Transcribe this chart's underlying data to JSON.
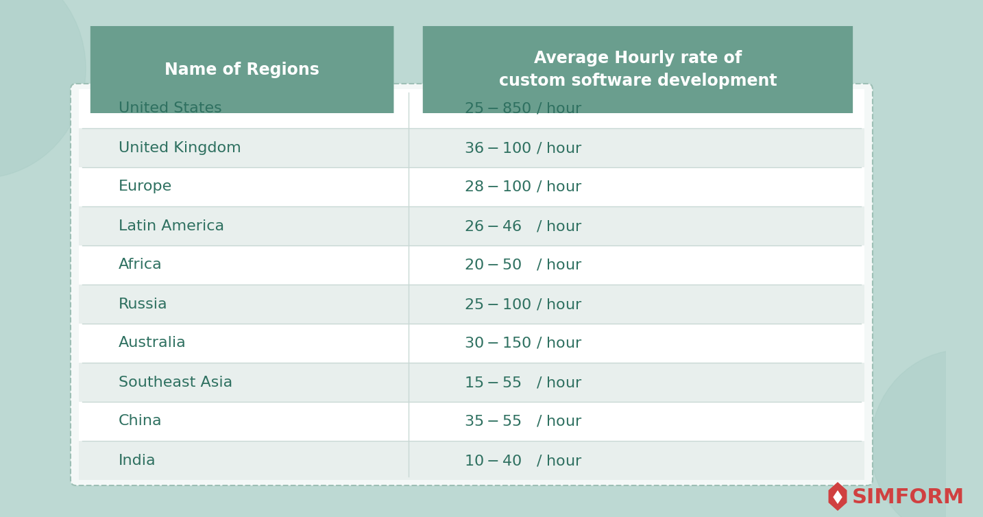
{
  "regions": [
    "United States",
    "United Kingdom",
    "Europe",
    "Latin America",
    "Africa",
    "Russia",
    "Australia",
    "Southeast Asia",
    "China",
    "India"
  ],
  "rates": [
    "$25-$850 / hour",
    "$36-$100 / hour",
    "$28-$100 / hour",
    "$26-$46   / hour",
    "$20-$50   / hour",
    "$25-$100 / hour",
    "$30-$150 / hour",
    "$15-$55   / hour",
    "$35-$55   / hour",
    "$10-$40   / hour"
  ],
  "header_col1": "Name of Regions",
  "header_col2": "Average Hourly rate of\ncustom software development",
  "bg_color": "#bdd9d3",
  "header_bg": "#6a9e8e",
  "header_text_color": "#ffffff",
  "row_odd_color": "#ffffff",
  "row_even_color": "#e8efed",
  "text_color": "#2e7060",
  "divider_color": "#c8d8d4",
  "table_border_color": "#9dbfb5",
  "table_bg": "#f4f8f7",
  "simform_color": "#d04040",
  "simform_text": "SIMFORM"
}
